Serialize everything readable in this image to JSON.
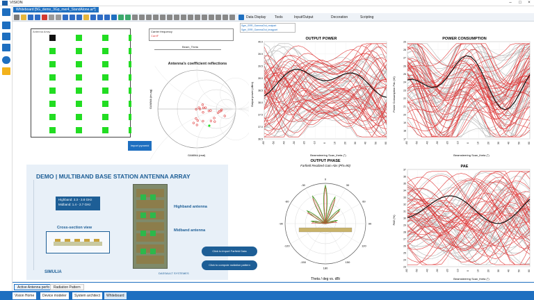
{
  "app": {
    "title": "VISION"
  },
  "document": {
    "tab_label": "Whiteboard [5G_demo_3Gp_mer4_StandAlone.ar*]"
  },
  "toolbar": {
    "data_display": "Data Display",
    "tools": "Tools",
    "input_output": "Input/Output",
    "decoration": "Decoration",
    "scripting": "Scripting"
  },
  "array_panel": {
    "title": "Antenna Array",
    "button_label": "Import pyramid"
  },
  "smith": {
    "legend_title": "Carrier frequency",
    "legend_item": "CarriF",
    "slider_value": "Beam_Theta",
    "title": "Antenna's coefficient reflections",
    "ylabel": "GAMMA (im.ag)",
    "xlabel": "GAMMA (real)"
  },
  "series_list": {
    "items": [
      "Sgm_SRR_GammaOut_realpart",
      "Sgm_SRR_GammaOut_imagpart"
    ]
  },
  "demo": {
    "title": "DEMO | MULTIBAND BASE STATION ANTENNA ARRAY",
    "highband": "Highband: 3.3 - 3.8 GHz",
    "midband": "Midband: 1.4 - 2.7 GHz",
    "cross_section": "Cross-section view",
    "label_high": "Highband antenna",
    "label_mid": "Midband antenna",
    "btn_import": "Click to import Farfield Data",
    "btn_compute": "Click to compute radiation pattern",
    "simulia": "SIMULIA",
    "dassault": "DASSAULT SYSTEMES"
  },
  "charts": {
    "output_power": {
      "title": "OUTPUT POWER",
      "ylabel": "Output power (dBm)",
      "xlabel": "Beamsteering Scan_theta (°)",
      "yticks": [
        "40.0",
        "39.9",
        "39.5",
        "39.0",
        "38.5",
        "38.0",
        "37.5",
        "37.0",
        "36.5"
      ]
    },
    "power_consumption": {
      "title": "POWER CONSUMPTION",
      "ylabel": "Power Consumption Pdc (W)",
      "xlabel": "Beamsteering Scan_theta (°)",
      "yticks": [
        "29",
        "28",
        "27",
        "26",
        "25",
        "24",
        "23",
        "22",
        "21",
        "20",
        "19",
        "18",
        "17"
      ]
    },
    "output_phase": {
      "title": "OUTPUT PHASE",
      "subtitle": "Farfield Realized Gain Abs (Phi=90)",
      "xlabel": "Theta / deg vs. dBi",
      "angles": [
        "0",
        "30",
        "60",
        "90",
        "120",
        "150",
        "180",
        "-150",
        "-120",
        "-90",
        "-60",
        "-30"
      ]
    },
    "pae": {
      "title": "PAE",
      "ylabel": "PAE (%)",
      "xlabel": "Beamsteering Scan_theta (°)",
      "yticks": [
        "37",
        "36",
        "35",
        "34",
        "33",
        "32",
        "31",
        "30",
        "29",
        "28",
        "27",
        "26",
        "25",
        "24",
        "23"
      ]
    },
    "x_ticks": [
      "-60",
      "-50",
      "-40",
      "-30",
      "-20",
      "-10",
      "0",
      "10",
      "20",
      "30",
      "40",
      "50",
      "60"
    ]
  },
  "bottom_tabs": [
    "Active Antenna perfo",
    "Radiation Pattern"
  ],
  "status_tabs": [
    "Vision Home",
    "Device modeler",
    "System architect",
    "Whiteboard"
  ],
  "colors": {
    "accent": "#1e6fc0",
    "series_red": "#e03a3a",
    "series_gray": "#b4b4b4",
    "element_green": "#22dd22"
  }
}
